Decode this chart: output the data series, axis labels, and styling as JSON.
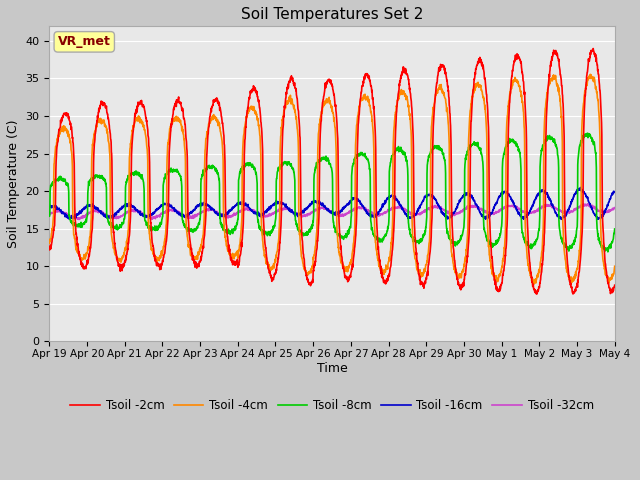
{
  "title": "Soil Temperatures Set 2",
  "xlabel": "Time",
  "ylabel": "Soil Temperature (C)",
  "ylim": [
    0,
    42
  ],
  "yticks": [
    0,
    5,
    10,
    15,
    20,
    25,
    30,
    35,
    40
  ],
  "xlim": [
    0,
    15
  ],
  "xtick_labels": [
    "Apr 19",
    "Apr 20",
    "Apr 21",
    "Apr 22",
    "Apr 23",
    "Apr 24",
    "Apr 25",
    "Apr 26",
    "Apr 27",
    "Apr 28",
    "Apr 29",
    "Apr 30",
    "May 1",
    "May 2",
    "May 3",
    "May 4"
  ],
  "xtick_positions": [
    0,
    1,
    2,
    3,
    4,
    5,
    6,
    7,
    8,
    9,
    10,
    11,
    12,
    13,
    14,
    15
  ],
  "annotation_text": "VR_met",
  "annotation_bg": "#ffff99",
  "annotation_edge": "#aaaaaa",
  "annotation_text_color": "#880000",
  "plot_bg": "#e8e8e8",
  "fig_bg": "#c8c8c8",
  "grid_color": "#ffffff",
  "colors": {
    "Tsoil -2cm": "#ff0000",
    "Tsoil -4cm": "#ff8800",
    "Tsoil -8cm": "#00cc00",
    "Tsoil -16cm": "#0000cc",
    "Tsoil -32cm": "#cc44cc"
  },
  "linewidth": 1.2
}
